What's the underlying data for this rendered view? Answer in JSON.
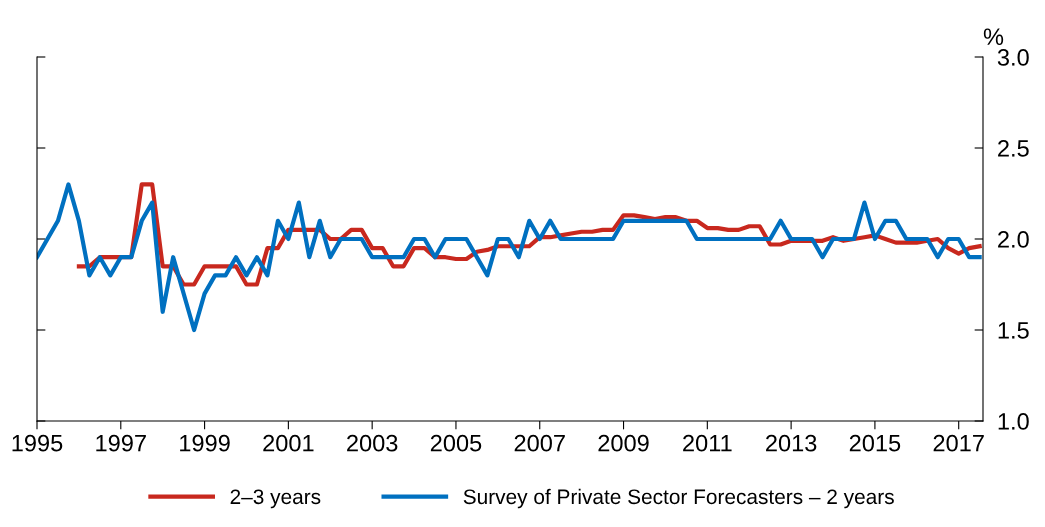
{
  "chart_data": {
    "type": "line",
    "ylabel": "%",
    "xlim": [
      1995,
      2017.58
    ],
    "xticks": [
      1995,
      1997,
      1999,
      2001,
      2003,
      2005,
      2007,
      2009,
      2011,
      2013,
      2015,
      2017
    ],
    "ylim": [
      1.0,
      3.0
    ],
    "yticks": [
      {
        "value": 1.0,
        "label": "1.0"
      },
      {
        "value": 1.5,
        "label": "1.5"
      },
      {
        "value": 2.0,
        "label": "2.0"
      },
      {
        "value": 2.5,
        "label": "2.5"
      },
      {
        "value": 3.0,
        "label": "3.0"
      }
    ],
    "grid": false,
    "legend": "bottom",
    "line_style": "solid",
    "marker": "none",
    "series": [
      {
        "name": "2–3 years",
        "color": "#c8281e",
        "x": [
          1996.0,
          1996.25,
          1996.5,
          1997.25,
          1997.5,
          1997.75,
          1998.0,
          1998.25,
          1998.5,
          1998.75,
          1999.0,
          1999.75,
          2000.0,
          2000.25,
          2000.5,
          2000.75,
          2001.0,
          2001.75,
          2002.0,
          2002.25,
          2002.5,
          2002.75,
          2003.0,
          2003.25,
          2003.5,
          2003.75,
          2004.0,
          2004.25,
          2004.5,
          2004.75,
          2005.0,
          2005.25,
          2005.5,
          2005.75,
          2006.0,
          2006.75,
          2007.0,
          2007.25,
          2007.5,
          2007.75,
          2008.0,
          2008.25,
          2008.5,
          2008.75,
          2009.0,
          2009.25,
          2009.5,
          2009.75,
          2010.0,
          2010.25,
          2010.5,
          2010.75,
          2011.0,
          2011.25,
          2011.5,
          2011.75,
          2012.0,
          2012.25,
          2012.5,
          2012.75,
          2013.0,
          2013.75,
          2014.0,
          2014.25,
          2014.5,
          2014.75,
          2015.0,
          2015.25,
          2015.5,
          2015.75,
          2016.0,
          2016.25,
          2016.5,
          2016.75,
          2017.0,
          2017.25,
          2017.5
        ],
        "values": [
          1.85,
          1.85,
          1.9,
          1.9,
          2.3,
          2.3,
          1.85,
          1.85,
          1.75,
          1.75,
          1.85,
          1.85,
          1.75,
          1.75,
          1.95,
          1.95,
          2.05,
          2.05,
          2.0,
          2.0,
          2.05,
          2.05,
          1.95,
          1.95,
          1.85,
          1.85,
          1.95,
          1.95,
          1.9,
          1.9,
          1.89,
          1.89,
          1.93,
          1.94,
          1.96,
          1.96,
          2.01,
          2.01,
          2.02,
          2.03,
          2.04,
          2.04,
          2.05,
          2.05,
          2.13,
          2.13,
          2.12,
          2.11,
          2.12,
          2.12,
          2.1,
          2.1,
          2.06,
          2.06,
          2.05,
          2.05,
          2.07,
          2.07,
          1.97,
          1.97,
          1.99,
          1.99,
          2.01,
          1.99,
          2.0,
          2.01,
          2.02,
          2.0,
          1.98,
          1.98,
          1.98,
          1.99,
          2.0,
          1.95,
          1.92,
          1.95,
          1.96
        ]
      },
      {
        "name": "Survey of Private Sector Forecasters – 2 years",
        "color": "#0070c0",
        "x": [
          1995.0,
          1995.5,
          1995.75,
          1996.0,
          1996.25,
          1996.5,
          1996.75,
          1997.0,
          1997.25,
          1997.5,
          1997.75,
          1998.0,
          1998.25,
          1998.75,
          1999.0,
          1999.25,
          1999.5,
          1999.75,
          2000.0,
          2000.25,
          2000.5,
          2000.75,
          2001.0,
          2001.25,
          2001.5,
          2001.75,
          2002.0,
          2002.25,
          2002.75,
          2003.0,
          2003.75,
          2004.0,
          2004.25,
          2004.5,
          2004.75,
          2005.25,
          2005.75,
          2006.0,
          2006.25,
          2006.5,
          2006.75,
          2007.0,
          2007.25,
          2007.5,
          2008.75,
          2009.0,
          2010.5,
          2010.75,
          2012.5,
          2012.75,
          2013.0,
          2013.5,
          2013.75,
          2014.0,
          2014.5,
          2014.75,
          2015.0,
          2015.25,
          2015.5,
          2015.75,
          2016.25,
          2016.5,
          2016.75,
          2017.0,
          2017.25,
          2017.5
        ],
        "values": [
          1.9,
          2.1,
          2.3,
          2.1,
          1.8,
          1.9,
          1.8,
          1.9,
          1.9,
          2.1,
          2.2,
          1.6,
          1.9,
          1.5,
          1.7,
          1.8,
          1.8,
          1.9,
          1.8,
          1.9,
          1.8,
          2.1,
          2.0,
          2.2,
          1.9,
          2.1,
          1.9,
          2.0,
          2.0,
          1.9,
          1.9,
          2.0,
          2.0,
          1.9,
          2.0,
          2.0,
          1.8,
          2.0,
          2.0,
          1.9,
          2.1,
          2.0,
          2.1,
          2.0,
          2.0,
          2.1,
          2.1,
          2.0,
          2.0,
          2.1,
          2.0,
          2.0,
          1.9,
          2.0,
          2.0,
          2.2,
          2.0,
          2.1,
          2.1,
          2.0,
          2.0,
          1.9,
          2.0,
          2.0,
          1.9,
          1.9
        ]
      }
    ]
  }
}
